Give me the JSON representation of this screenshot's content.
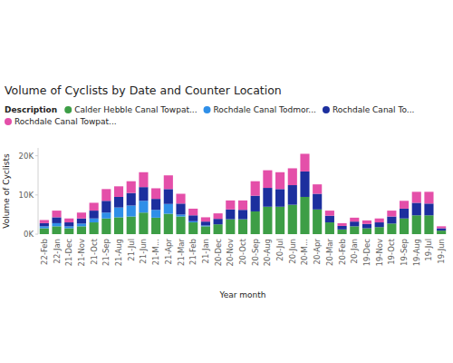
{
  "chart_data": {
    "type": "bar",
    "stacked": true,
    "grid": false,
    "title": "Volume of Cyclists by Date and Counter Location",
    "legend_title": "Description",
    "legend": "top-left",
    "x_label": "Year month",
    "y_label": "Volume of Cyclists",
    "categories": [
      "22-Feb",
      "22-Jan",
      "21-Dec",
      "21-Nov",
      "21-Oct",
      "21-Sep",
      "21-Aug",
      "21-Jul",
      "21-Jun",
      "21-M...",
      "21-Apr",
      "21-Mar",
      "21-Feb",
      "21-Jan",
      "20-Dec",
      "20-Nov",
      "20-Oct",
      "20-Sep",
      "20-Aug",
      "20-Jul",
      "20-Jun",
      "20-M...",
      "20-Apr",
      "20-Mar",
      "20-Feb",
      "20-Jan",
      "19-Dec",
      "19-Nov",
      "19-Oct",
      "19-Sep",
      "19-Aug",
      "19-Jul",
      "19-Jun"
    ],
    "ylim": [
      0,
      22000
    ],
    "yticks": [
      {
        "value": 0,
        "label": "0K"
      },
      {
        "value": 10000,
        "label": "10K"
      },
      {
        "value": 20000,
        "label": "20K"
      }
    ],
    "series": [
      {
        "name": "Calder Hebble Canal Towpat...",
        "color": "#3d9e46",
        "values": [
          1500,
          2000,
          1500,
          2000,
          3000,
          4000,
          4300,
          4500,
          5500,
          4200,
          5200,
          4500,
          3000,
          2000,
          2500,
          3800,
          3800,
          5800,
          7000,
          7000,
          7500,
          9500,
          6300,
          3000,
          1200,
          2000,
          1500,
          1800,
          2700,
          4000,
          4800,
          4800,
          900
        ]
      },
      {
        "name": "Rochdale Canal Todmor...",
        "color": "#2f8fe8",
        "values": [
          500,
          800,
          500,
          700,
          1000,
          1500,
          2500,
          2800,
          3000,
          2000,
          2500,
          500,
          300,
          200,
          0,
          0,
          0,
          0,
          0,
          0,
          0,
          0,
          0,
          0,
          0,
          0,
          0,
          0,
          0,
          0,
          0,
          0,
          0
        ]
      },
      {
        "name": "Rochdale Canal To...",
        "color": "#1c2f9e",
        "values": [
          800,
          1500,
          1000,
          1300,
          2000,
          3000,
          2700,
          3200,
          3500,
          2800,
          3800,
          2800,
          1500,
          1000,
          1400,
          2500,
          2400,
          4000,
          4800,
          4500,
          5000,
          6500,
          4000,
          1700,
          900,
          1200,
          1100,
          1200,
          1800,
          2500,
          3200,
          3000,
          600
        ]
      },
      {
        "name": "Rochdale Canal Towpat...",
        "color": "#e44fa9",
        "values": [
          800,
          1700,
          1000,
          1500,
          2000,
          3000,
          2700,
          3000,
          3800,
          2700,
          3500,
          2500,
          1700,
          1100,
          1400,
          2300,
          2400,
          3700,
          4500,
          4300,
          4300,
          4500,
          2400,
          1300,
          700,
          1000,
          900,
          1000,
          1500,
          2000,
          2800,
          3000,
          500
        ]
      }
    ]
  }
}
